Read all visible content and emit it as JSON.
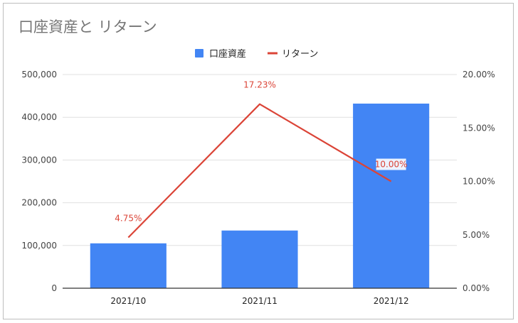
{
  "chart_data": {
    "type": "bar+line",
    "title": "口座資産と リターン",
    "legend_position": "top",
    "categories": [
      "2021/10",
      "2021/11",
      "2021/12"
    ],
    "series": [
      {
        "name": "口座資産",
        "type": "bar",
        "axis": "left",
        "color": "#4285f4",
        "values": [
          105000,
          135000,
          432000
        ]
      },
      {
        "name": "リターン",
        "type": "line",
        "axis": "right",
        "color": "#db4437",
        "values": [
          4.75,
          17.23,
          10.0
        ],
        "labels": [
          "4.75%",
          "17.23%",
          "10.00%"
        ]
      }
    ],
    "y_left": {
      "ylim": [
        0,
        500000
      ],
      "ticks": [
        0,
        100000,
        200000,
        300000,
        400000,
        500000
      ],
      "tick_labels": [
        "0",
        "100,000",
        "200,000",
        "300,000",
        "400,000",
        "500,000"
      ]
    },
    "y_right": {
      "ylim": [
        0,
        20
      ],
      "ticks": [
        0,
        5,
        10,
        15,
        20
      ],
      "tick_labels": [
        "0.00%",
        "5.00%",
        "10.00%",
        "15.00%",
        "20.00%"
      ]
    },
    "grid": true
  }
}
